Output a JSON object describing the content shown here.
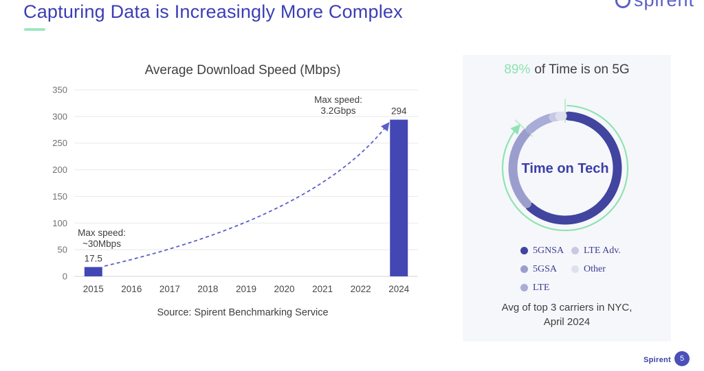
{
  "slide": {
    "title": "Capturing Data is Increasingly More Complex",
    "logo_text": "spirent",
    "footer_brand": "Spirent",
    "page_number": "5",
    "accent_green": "#9fe7c2",
    "accent_indigo": "#3b3eb5"
  },
  "chart_data": [
    {
      "type": "bar",
      "title": "Average Download Speed (Mbps)",
      "categories": [
        "2015",
        "2016",
        "2017",
        "2018",
        "2019",
        "2020",
        "2021",
        "2022",
        "2024"
      ],
      "values": [
        17.5,
        null,
        null,
        null,
        null,
        null,
        null,
        null,
        294
      ],
      "bar_value_labels": [
        "17.5",
        "294"
      ],
      "ylim": [
        0,
        350
      ],
      "yticks": [
        0,
        50,
        100,
        150,
        200,
        250,
        300,
        350
      ],
      "grid": "horizontal",
      "bar_color": "#4347b4",
      "trend_arrow_color": "#5a5ec5",
      "annotations": [
        {
          "lines": [
            "Max speed:",
            "~30Mbps"
          ],
          "anchor": "2015"
        },
        {
          "lines": [
            "Max speed:",
            "3.2Gbps"
          ],
          "anchor": "2024"
        }
      ],
      "source": "Source: Spirent Benchmarking Service"
    },
    {
      "type": "donut",
      "header": {
        "highlight": "89%",
        "rest": "of Time is on 5G"
      },
      "center_label": "Time on Tech",
      "segments": [
        {
          "label": "5GNSA",
          "color": "#41459f",
          "start_deg": 4,
          "end_deg": 222,
          "share_pct_est": 61
        },
        {
          "label": "5GSA",
          "color": "#9b9ecd",
          "start_deg": 227,
          "end_deg": 312,
          "share_pct_est": 24
        },
        {
          "label": "LTE",
          "color": "#a9acd6",
          "start_deg": 318,
          "end_deg": 343,
          "share_pct_est": 7
        },
        {
          "label": "LTE Adv.",
          "color": "#c6c8e4",
          "start_deg": 347,
          "end_deg": 352,
          "share_pct_est": 1.5
        },
        {
          "label": "Other",
          "color": "#dfe0ee",
          "start_deg": 354,
          "end_deg": 357,
          "share_pct_est": 1
        }
      ],
      "highlight_arc": {
        "color": "#8fe3b4",
        "start_deg": 0,
        "end_deg": 311,
        "meaning": "green arc with arrow marking the 89% 5G share"
      },
      "legend_order": [
        "5GNSA",
        "LTE Adv.",
        "5GSA",
        "Other",
        "LTE"
      ],
      "caption_lines": [
        "Avg of top 3 carriers in NYC,",
        "April 2024"
      ]
    }
  ]
}
